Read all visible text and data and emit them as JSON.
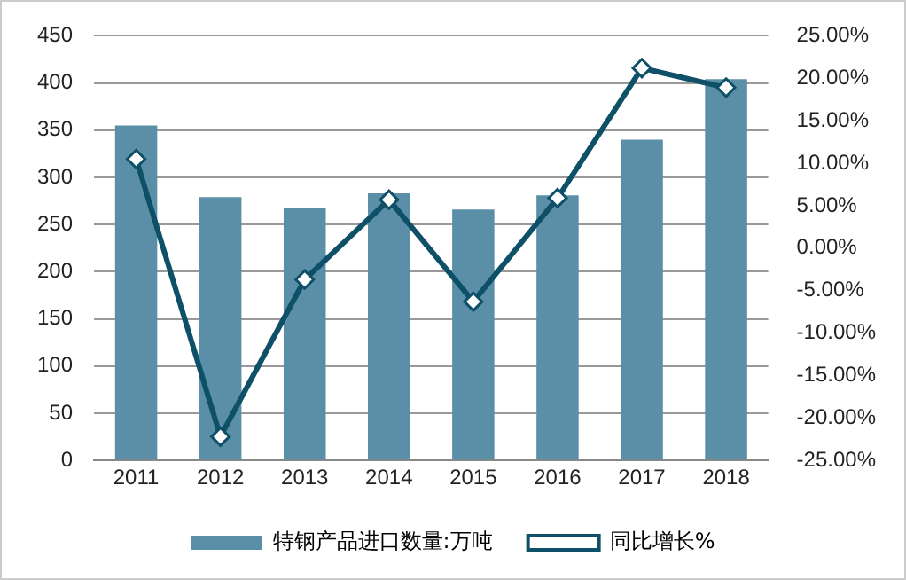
{
  "chart_data": {
    "type": "bar",
    "categories": [
      "2011",
      "2012",
      "2013",
      "2014",
      "2015",
      "2016",
      "2017",
      "2018"
    ],
    "series": [
      {
        "name": "特钢产品进口数量:万吨",
        "color": "#5b8fa8",
        "values": [
          355,
          279,
          268,
          283,
          266,
          281,
          340,
          404
        ]
      },
      {
        "name": "同比增长%",
        "type": "line",
        "axis": "y2",
        "color": "#0e5068",
        "marker": "diamond",
        "values": [
          10.5,
          -22.2,
          -3.7,
          5.7,
          -6.3,
          5.9,
          21.2,
          18.9
        ]
      }
    ],
    "ylim": [
      0,
      450
    ],
    "yticks": [
      0,
      50,
      100,
      150,
      200,
      250,
      300,
      350,
      400,
      450
    ],
    "y2lim": [
      -25,
      25
    ],
    "y2ticks": [
      {
        "value": -25,
        "label": "-25.00%"
      },
      {
        "value": -20,
        "label": "-20.00%"
      },
      {
        "value": -15,
        "label": "-15.00%"
      },
      {
        "value": -10,
        "label": "-10.00%"
      },
      {
        "value": -5,
        "label": "-5.00%"
      },
      {
        "value": 0,
        "label": "0.00%"
      },
      {
        "value": 5,
        "label": "5.00%"
      },
      {
        "value": 10,
        "label": "10.00%"
      },
      {
        "value": 15,
        "label": "15.00%"
      },
      {
        "value": 20,
        "label": "20.00%"
      },
      {
        "value": 25,
        "label": "25.00%"
      }
    ],
    "grid": "y",
    "legend": "bottom"
  }
}
